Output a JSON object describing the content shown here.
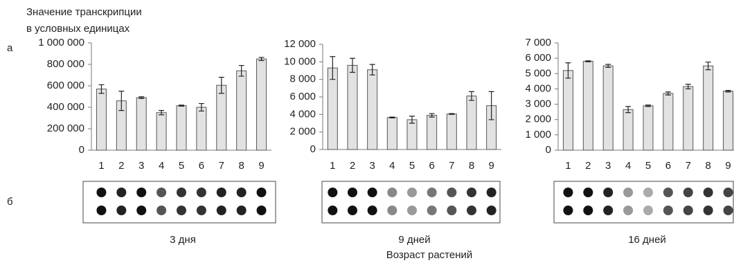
{
  "panel_labels": [
    "а",
    "б"
  ],
  "xlabel": "Возраст растений",
  "chart_data": [
    {
      "type": "bar",
      "ylabel": [
        "Значение транскрипции",
        "в условных единицах"
      ],
      "caption": "3 дня",
      "categories": [
        "1",
        "2",
        "3",
        "4",
        "5",
        "6",
        "7",
        "8",
        "9"
      ],
      "values": [
        570000,
        460000,
        490000,
        350000,
        415000,
        400000,
        605000,
        740000,
        850000
      ],
      "errors": [
        40000,
        90000,
        8000,
        20000,
        5000,
        35000,
        75000,
        50000,
        15000
      ],
      "color": "#e2e2e2",
      "ylim": [
        0,
        1000000
      ],
      "yticks": [
        0,
        {
          "value": 200000,
          "label": "200 000"
        },
        {
          "value": 400000,
          "label": "400 000"
        },
        {
          "value": 600000,
          "label": "600 000"
        },
        {
          "value": 800000,
          "label": "800 000"
        },
        {
          "value": 1000000,
          "label": "1 000 000"
        }
      ]
    },
    {
      "type": "bar",
      "caption": "9 дней",
      "categories": [
        "1",
        "2",
        "3",
        "4",
        "5",
        "6",
        "7",
        "8",
        "9"
      ],
      "values": [
        9300,
        9600,
        9100,
        3650,
        3400,
        3900,
        4050,
        6100,
        5000
      ],
      "errors": [
        1300,
        800,
        600,
        50,
        400,
        200,
        50,
        500,
        1600
      ],
      "color": "#e2e2e2",
      "ylim": [
        0,
        12000
      ],
      "yticks": [
        0,
        {
          "value": 2000,
          "label": "2 000"
        },
        {
          "value": 4000,
          "label": "4 000"
        },
        {
          "value": 6000,
          "label": "6 000"
        },
        {
          "value": 8000,
          "label": "8 000"
        },
        {
          "value": 10000,
          "label": "10 000"
        },
        {
          "value": 12000,
          "label": "12 000"
        }
      ]
    },
    {
      "type": "bar",
      "caption": "16 дней",
      "categories": [
        "1",
        "2",
        "3",
        "4",
        "5",
        "6",
        "7",
        "8",
        "9"
      ],
      "values": [
        5200,
        5800,
        5500,
        2650,
        2900,
        3700,
        4150,
        5500,
        3850
      ],
      "errors": [
        500,
        30,
        100,
        200,
        50,
        100,
        150,
        250,
        50
      ],
      "color": "#e2e2e2",
      "ylim": [
        0,
        7000
      ],
      "yticks": [
        0,
        {
          "value": 1000,
          "label": "1 000"
        },
        {
          "value": 2000,
          "label": "2 000"
        },
        {
          "value": 3000,
          "label": "3 000"
        },
        {
          "value": 4000,
          "label": "4 000"
        },
        {
          "value": 5000,
          "label": "5 000"
        },
        {
          "value": 6000,
          "label": "6 000"
        },
        {
          "value": 7000,
          "label": "7 000"
        }
      ]
    }
  ]
}
